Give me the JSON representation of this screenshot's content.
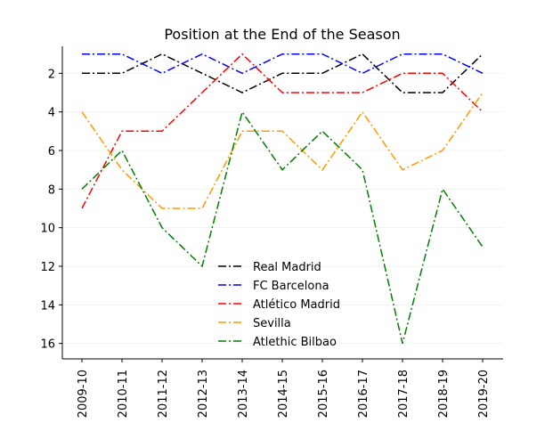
{
  "chart_data": {
    "type": "line",
    "title": "Position at the End of the Season",
    "xlabel": "",
    "ylabel": "",
    "categories": [
      "2009-10",
      "2010-11",
      "2011-12",
      "2012-13",
      "2013-14",
      "2014-15",
      "2015-16",
      "2016-17",
      "2017-18",
      "2018-19",
      "2019-20"
    ],
    "yticks": [
      2,
      4,
      6,
      8,
      10,
      12,
      14,
      16
    ],
    "ylim": [
      16.8,
      0.6
    ],
    "y_inverted": true,
    "grid": "horizontal-faint",
    "legend_position": "lower-center",
    "series": [
      {
        "name": "Real Madrid",
        "color": "#000000",
        "values": [
          2,
          2,
          1,
          2,
          3,
          2,
          2,
          1,
          3,
          3,
          1
        ]
      },
      {
        "name": "FC Barcelona",
        "color": "#0000ff",
        "values": [
          1,
          1,
          2,
          1,
          2,
          1,
          1,
          2,
          1,
          1,
          2
        ]
      },
      {
        "name": "Atlético Madrid",
        "color": "#ff0000",
        "values": [
          9,
          5,
          5,
          3,
          1,
          3,
          3,
          3,
          2,
          2,
          4
        ]
      },
      {
        "name": "Sevilla",
        "color": "#ff9900",
        "values": [
          4,
          7,
          9,
          9,
          5,
          5,
          7,
          4,
          7,
          6,
          3
        ]
      },
      {
        "name": "Atlethic Bilbao",
        "color": "#007f00",
        "values": [
          8,
          6,
          10,
          12,
          4,
          7,
          5,
          7,
          16,
          8,
          11
        ]
      }
    ]
  }
}
